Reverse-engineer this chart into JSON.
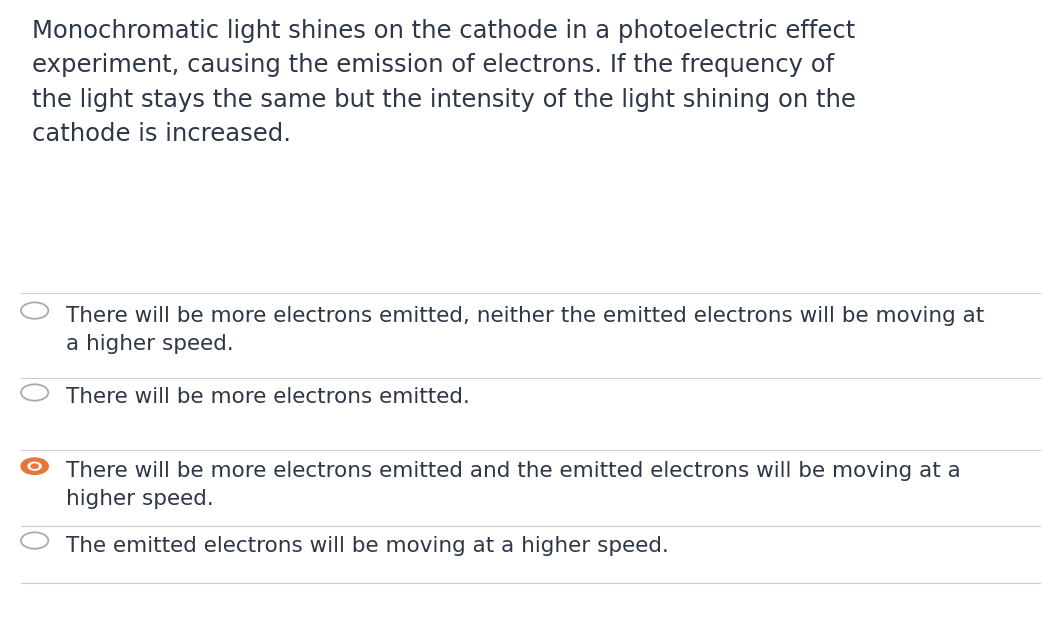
{
  "background_color": "#ffffff",
  "text_color": "#2d3748",
  "question_text": "Monochromatic light shines on the cathode in a photoelectric effect\nexperiment, causing the emission of electrons. If the frequency of\nthe light stays the same but the intensity of the light shining on the\ncathode is increased.",
  "options": [
    {
      "text": "There will be more electrons emitted, neither the emitted electrons will be moving at\na higher speed.",
      "selected": false
    },
    {
      "text": "There will be more electrons emitted.",
      "selected": false
    },
    {
      "text": "There will be more electrons emitted and the emitted electrons will be moving at a\nhigher speed.",
      "selected": true
    },
    {
      "text": "The emitted electrons will be moving at a higher speed.",
      "selected": false
    }
  ],
  "divider_color": "#cccccc",
  "radio_unselected_color": "#aaaaaa",
  "radio_selected_fill": "#e8763a",
  "question_fontsize": 17.5,
  "option_fontsize": 15.5,
  "fig_width": 10.5,
  "fig_height": 6.3,
  "dpi": 100
}
